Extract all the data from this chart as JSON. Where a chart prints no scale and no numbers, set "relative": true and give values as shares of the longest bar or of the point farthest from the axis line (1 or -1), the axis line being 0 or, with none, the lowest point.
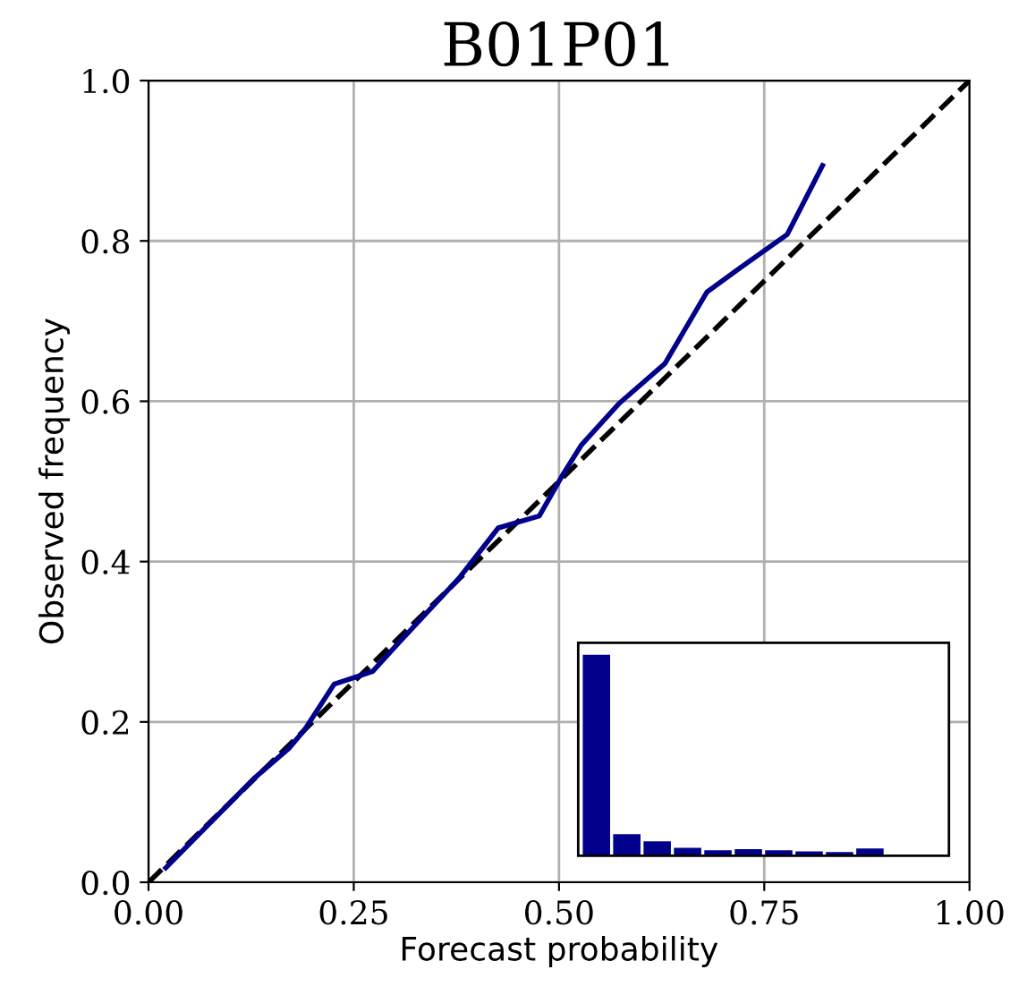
{
  "chart_data": [
    {
      "type": "line",
      "title": "B01P01",
      "xlabel": "Forecast probability",
      "ylabel": "Observed frequency",
      "xlim": [
        0,
        1
      ],
      "ylim": [
        0,
        1
      ],
      "xticks": [
        {
          "value": 0,
          "label": "0.00"
        },
        0.25,
        {
          "value": 0.5,
          "label": "0.50"
        },
        0.75,
        {
          "value": 1,
          "label": "1.00"
        }
      ],
      "yticks": [
        {
          "value": 0,
          "label": "0.0"
        },
        0.2,
        0.4,
        0.6,
        0.8,
        {
          "value": 1,
          "label": "1.0"
        }
      ],
      "grid": true,
      "series": [
        {
          "color": "#000000",
          "line_style": "dashed",
          "x": [
            0,
            1
          ],
          "values": [
            0,
            1
          ]
        },
        {
          "color": "#00008b",
          "line_style": "solid",
          "x": [
            0.021,
            0.128,
            0.171,
            0.19,
            0.226,
            0.273,
            0.306,
            0.378,
            0.426,
            0.476,
            0.505,
            0.527,
            0.574,
            0.629,
            0.68,
            0.72,
            0.778,
            0.821
          ],
          "values": [
            0.018,
            0.129,
            0.167,
            0.19,
            0.247,
            0.263,
            0.3,
            0.379,
            0.442,
            0.457,
            0.509,
            0.545,
            0.598,
            0.647,
            0.736,
            0.766,
            0.808,
            0.894
          ]
        }
      ]
    },
    {
      "type": "bar",
      "relative": true,
      "tick_labels": false,
      "color": "#00008b",
      "categories": [
        null,
        null,
        null,
        null,
        null,
        null,
        null,
        null,
        null,
        null
      ],
      "values": [
        1,
        0.107,
        0.072,
        0.039,
        0.027,
        0.033,
        0.027,
        0.021,
        0.018,
        0.036
      ]
    }
  ]
}
